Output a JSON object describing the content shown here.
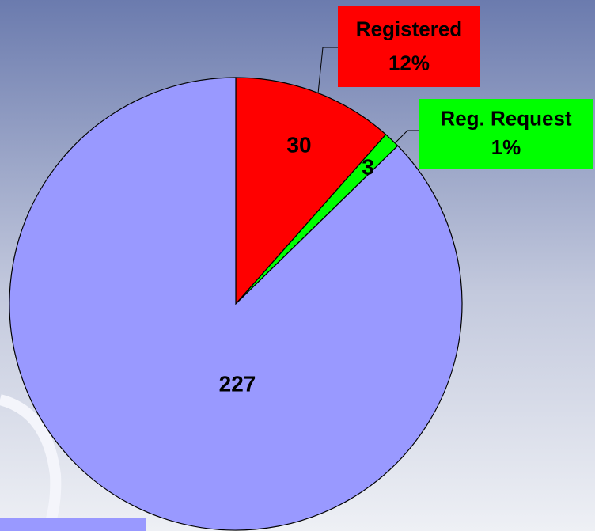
{
  "chart_data": {
    "type": "pie",
    "categories": [
      "Registered",
      "Reg. Request",
      null
    ],
    "values": [
      30,
      3,
      227
    ],
    "percent_labels": [
      "12%",
      "1%",
      null
    ],
    "colors": [
      "#ff0000",
      "#00ff00",
      "#9999ff"
    ]
  }
}
